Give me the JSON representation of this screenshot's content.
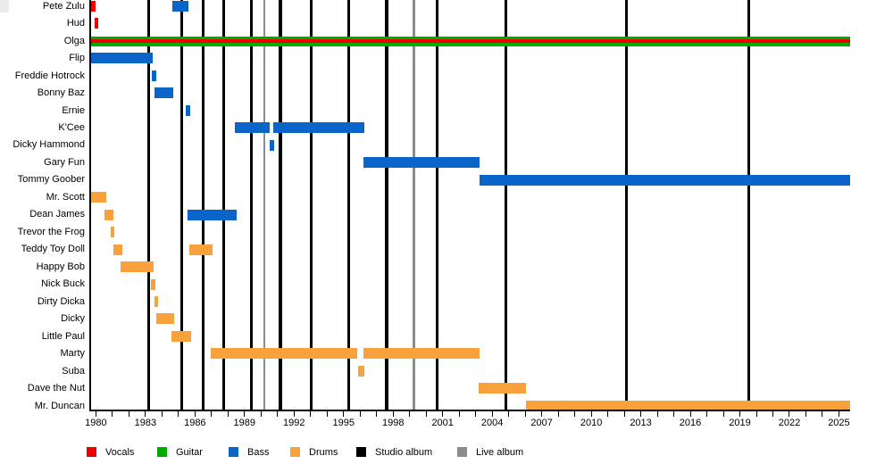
{
  "chart_data": {
    "type": "timeline",
    "description": "Band members timeline (gantt) with album release markers",
    "colors": {
      "vocals": "#EE0000",
      "guitar": "#00AB00",
      "bass": "#0B64C8",
      "drums": "#F9A13C",
      "studio_album": "#000000",
      "live_album": "#8C8C8C"
    },
    "legend": [
      {
        "label": "Vocals",
        "color": "#EE0000"
      },
      {
        "label": "Guitar",
        "color": "#00AB00"
      },
      {
        "label": "Bass",
        "color": "#0B64C8"
      },
      {
        "label": "Drums",
        "color": "#F9A13C"
      },
      {
        "label": "Studio album",
        "color": "#000000"
      },
      {
        "label": "Live album",
        "color": "#8C8C8C"
      }
    ],
    "axis": {
      "start_year": 1979.62,
      "end_year": 2025.66,
      "tick_step": 1,
      "label_step": 3,
      "tick_labels": [
        "1980",
        "1983",
        "1986",
        "1989",
        "1992",
        "1995",
        "1998",
        "2001",
        "2004",
        "2007",
        "2010",
        "2013",
        "2016",
        "2019",
        "2022",
        "2025"
      ]
    },
    "albums": {
      "studio": [
        1983.2,
        1985.2,
        1986.5,
        1987.75,
        1989.4,
        1991.17,
        1993.06,
        1995.31,
        1997.61,
        2000.66,
        2004.83,
        2012.13,
        2019.54
      ],
      "live": [
        1990.2,
        1999.26
      ]
    },
    "members": [
      {
        "name": "Pete Zulu",
        "segments": [
          {
            "role": "vocals",
            "start": 1979.62,
            "end": 1980.0
          },
          {
            "role": "bass",
            "start": 1984.63,
            "end": 1985.6
          }
        ]
      },
      {
        "name": "Hud",
        "segments": [
          {
            "role": "vocals",
            "start": 1979.92,
            "end": 1980.14
          }
        ]
      },
      {
        "name": "Olga",
        "segments": [
          {
            "role": "guitar",
            "start": 1979.62,
            "end": 2025.66
          },
          {
            "role": "vocals_overlay",
            "start": 1979.62,
            "end": 2025.66
          }
        ]
      },
      {
        "name": "Flip",
        "segments": [
          {
            "role": "bass",
            "start": 1979.62,
            "end": 1983.44
          }
        ]
      },
      {
        "name": "Freddie Hotrock",
        "segments": [
          {
            "role": "bass",
            "start": 1983.39,
            "end": 1983.66
          }
        ]
      },
      {
        "name": "Bonny Baz",
        "segments": [
          {
            "role": "bass",
            "start": 1983.53,
            "end": 1984.68
          }
        ]
      },
      {
        "name": "Ernie",
        "segments": [
          {
            "role": "bass",
            "start": 1985.46,
            "end": 1985.73
          }
        ]
      },
      {
        "name": "K'Cee",
        "segments": [
          {
            "role": "bass",
            "start": 1988.43,
            "end": 1990.55
          },
          {
            "role": "bass",
            "start": 1990.74,
            "end": 1996.26
          }
        ]
      },
      {
        "name": "Dicky Hammond",
        "segments": [
          {
            "role": "bass",
            "start": 1990.52,
            "end": 1990.79
          }
        ]
      },
      {
        "name": "Gary Fun",
        "segments": [
          {
            "role": "bass",
            "start": 1996.23,
            "end": 2003.23
          }
        ]
      },
      {
        "name": "Tommy Goober",
        "segments": [
          {
            "role": "bass",
            "start": 2003.23,
            "end": 2025.66
          }
        ]
      },
      {
        "name": "Mr. Scott",
        "segments": [
          {
            "role": "drums",
            "start": 1979.62,
            "end": 1980.63
          }
        ]
      },
      {
        "name": "Dean James",
        "segments": [
          {
            "role": "drums",
            "start": 1980.52,
            "end": 1981.06
          },
          {
            "role": "bass",
            "start": 1985.55,
            "end": 1988.52
          }
        ]
      },
      {
        "name": "Trevor the Frog",
        "segments": [
          {
            "role": "drums",
            "start": 1980.9,
            "end": 1981.09
          }
        ]
      },
      {
        "name": "Teddy Toy Doll",
        "segments": [
          {
            "role": "drums",
            "start": 1981.06,
            "end": 1981.6
          },
          {
            "role": "drums",
            "start": 1985.66,
            "end": 1987.09
          }
        ]
      },
      {
        "name": "Happy Bob",
        "segments": [
          {
            "role": "drums",
            "start": 1981.49,
            "end": 1983.47
          }
        ]
      },
      {
        "name": "Nick Buck",
        "segments": [
          {
            "role": "drums",
            "start": 1983.35,
            "end": 1983.6
          }
        ]
      },
      {
        "name": "Dirty Dicka",
        "segments": [
          {
            "role": "drums",
            "start": 1983.56,
            "end": 1983.78
          }
        ]
      },
      {
        "name": "Dicky",
        "segments": [
          {
            "role": "drums",
            "start": 1983.66,
            "end": 1984.74
          }
        ]
      },
      {
        "name": "Little Paul",
        "segments": [
          {
            "role": "drums",
            "start": 1984.58,
            "end": 1985.78
          }
        ]
      },
      {
        "name": "Marty",
        "segments": [
          {
            "role": "drums",
            "start": 1986.95,
            "end": 1995.82
          },
          {
            "role": "drums",
            "start": 1996.22,
            "end": 2003.23
          }
        ]
      },
      {
        "name": "Suba",
        "segments": [
          {
            "role": "drums",
            "start": 1995.88,
            "end": 1996.27
          }
        ]
      },
      {
        "name": "Dave the Nut",
        "segments": [
          {
            "role": "drums",
            "start": 2003.18,
            "end": 2006.04
          }
        ]
      },
      {
        "name": "Mr. Duncan",
        "segments": [
          {
            "role": "drums",
            "start": 2006.04,
            "end": 2025.66
          }
        ]
      }
    ]
  }
}
